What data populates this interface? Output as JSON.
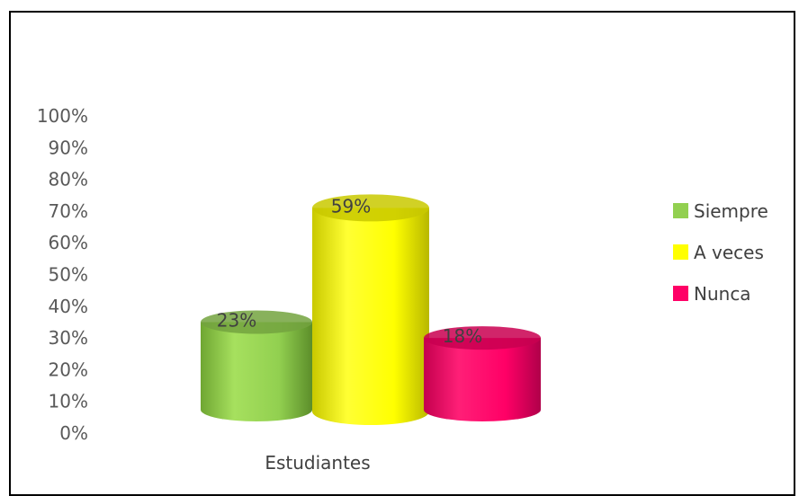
{
  "chart_data": {
    "type": "bar",
    "categories": [
      "Estudiantes"
    ],
    "series": [
      {
        "name": "Siempre",
        "values": [
          0.23
        ],
        "label": "23%"
      },
      {
        "name": "A veces",
        "values": [
          0.59
        ],
        "label": "59%"
      },
      {
        "name": "Nunca",
        "values": [
          0.18
        ],
        "label": "18%"
      }
    ],
    "yticks": [
      "0%",
      "10%",
      "20%",
      "30%",
      "40%",
      "50%",
      "60%",
      "70%",
      "80%",
      "90%",
      "100%"
    ],
    "ylim": [
      0,
      1
    ],
    "grid": false,
    "legend_position": "right",
    "colors": {
      "Siempre": "#92D050",
      "A veces": "#FFFF00",
      "Nunca": "#FF0066"
    }
  }
}
